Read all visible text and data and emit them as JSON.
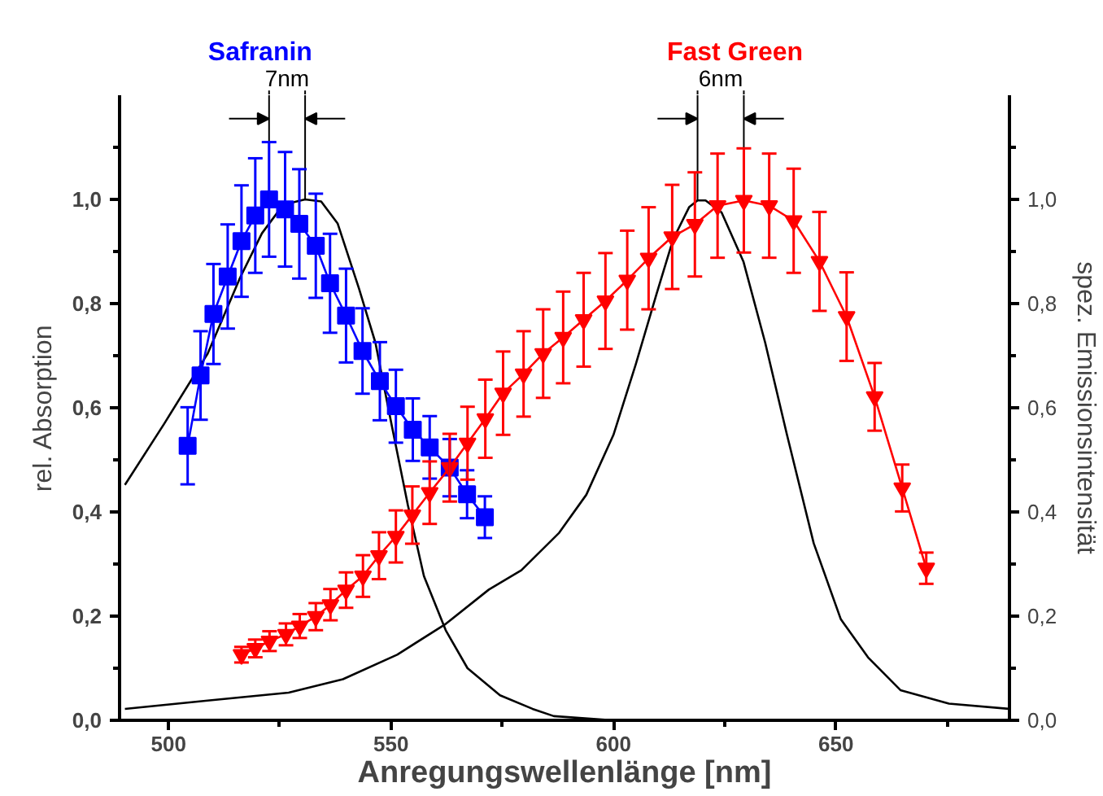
{
  "chart_data": {
    "type": "line",
    "xlabel": "Anregungswellenlänge [nm]",
    "ylabel": "rel. Absorption",
    "y2label": "spez. Emissionsintensität",
    "xlim": [
      489,
      689
    ],
    "xticks": [
      500,
      {
        "value": 525,
        "label": null
      },
      550,
      {
        "value": 575,
        "label": null
      },
      600,
      {
        "value": 625,
        "label": null
      },
      650,
      {
        "value": 675,
        "label": null
      }
    ],
    "ylim": [
      0,
      1.2
    ],
    "yticks": [
      {
        "value": 0,
        "label": "0,0"
      },
      {
        "value": 0.1,
        "label": null
      },
      {
        "value": 0.2,
        "label": "0,2"
      },
      {
        "value": 0.3,
        "label": null
      },
      {
        "value": 0.4,
        "label": "0,4"
      },
      {
        "value": 0.5,
        "label": null
      },
      {
        "value": 0.6,
        "label": "0,6"
      },
      {
        "value": 0.7,
        "label": null
      },
      {
        "value": 0.8,
        "label": "0,8"
      },
      {
        "value": 0.9,
        "label": null
      },
      {
        "value": 1.0,
        "label": "1,0"
      },
      {
        "value": 1.1,
        "label": null
      }
    ],
    "y2lim": [
      0,
      1.2
    ],
    "y2ticks": [
      {
        "value": 0,
        "label": "0,0"
      },
      {
        "value": 0.1,
        "label": null
      },
      {
        "value": 0.2,
        "label": "0,2"
      },
      {
        "value": 0.3,
        "label": null
      },
      {
        "value": 0.4,
        "label": "0,4"
      },
      {
        "value": 0.5,
        "label": null
      },
      {
        "value": 0.6,
        "label": "0,6"
      },
      {
        "value": 0.7,
        "label": null
      },
      {
        "value": 0.8,
        "label": "0,8"
      },
      {
        "value": 0.9,
        "label": null
      },
      {
        "value": 1.0,
        "label": "1,0"
      },
      {
        "value": 1.1,
        "label": null
      }
    ],
    "grid": false,
    "annotations": [
      {
        "text": "7nm",
        "x": 522.6,
        "y": 1.0
      },
      {
        "text": "6nm",
        "x": 629.3,
        "y": 0.998
      }
    ],
    "series": [
      {
        "color": "#000000",
        "marker": "none",
        "x": [
          490.2,
          499,
          508.8,
          516.1,
          521,
          525.8,
          530.7,
          534.3,
          538,
          542.8,
          546.5,
          550.1,
          553.8,
          557.4,
          562.3,
          567.2,
          574.5,
          581.8,
          586.6,
          600
        ],
        "values": [
          0.452,
          0.569,
          0.704,
          0.85,
          0.935,
          0.99,
          1.0,
          0.996,
          0.954,
          0.829,
          0.725,
          0.569,
          0.413,
          0.277,
          0.173,
          0.1,
          0.048,
          0.022,
          0.008,
          0.0
        ]
      },
      {
        "color": "#000000",
        "marker": "none",
        "x": [
          490.2,
          508.8,
          527,
          539.2,
          551.4,
          562.3,
          572,
          579.3,
          587.8,
          593.9,
          600,
          605,
          609.7,
          613.4,
          617,
          618.9,
          620.7,
          624.3,
          629.2,
          634.1,
          639,
          645,
          651.1,
          657.2,
          664.5,
          675.4,
          688.8
        ],
        "values": [
          0.022,
          0.038,
          0.053,
          0.079,
          0.126,
          0.185,
          0.251,
          0.288,
          0.36,
          0.433,
          0.548,
          0.683,
          0.819,
          0.923,
          0.985,
          0.998,
          0.998,
          0.975,
          0.881,
          0.725,
          0.548,
          0.34,
          0.194,
          0.121,
          0.058,
          0.032,
          0.022
        ]
      },
      {
        "name": "Safranin",
        "color": "#0000ff",
        "marker": "square",
        "x": [
          504.3,
          507.2,
          510.1,
          513.3,
          516.4,
          519.5,
          522.6,
          526.2,
          529.4,
          533.1,
          536.3,
          539.9,
          543.6,
          547.5,
          551.1,
          554.9,
          558.7,
          563.2,
          567.1,
          571.1
        ],
        "values": [
          0.527,
          0.662,
          0.78,
          0.852,
          0.92,
          0.969,
          1.0,
          0.981,
          0.953,
          0.911,
          0.839,
          0.777,
          0.709,
          0.651,
          0.603,
          0.558,
          0.524,
          0.485,
          0.434,
          0.39
        ],
        "errors": [
          0.074,
          0.085,
          0.096,
          0.1,
          0.107,
          0.11,
          0.11,
          0.11,
          0.105,
          0.1,
          0.095,
          0.09,
          0.082,
          0.075,
          0.07,
          0.06,
          0.06,
          0.055,
          0.046,
          0.04
        ]
      },
      {
        "name": "Fast Green",
        "color": "#ff0000",
        "marker": "triangle",
        "x": [
          516.4,
          519.5,
          522.7,
          526.4,
          529.5,
          533.1,
          536.4,
          539.9,
          543.7,
          547.3,
          551.1,
          554.8,
          558.7,
          563.2,
          567.2,
          571.2,
          575.2,
          579.8,
          584.2,
          588.7,
          593.3,
          598.2,
          603.1,
          607.9,
          613.2,
          618.3,
          623.4,
          629.3,
          635,
          640.5,
          646.3,
          652.4,
          658.7,
          664.9,
          670.3
        ],
        "values": [
          0.126,
          0.138,
          0.152,
          0.165,
          0.181,
          0.199,
          0.222,
          0.25,
          0.277,
          0.316,
          0.353,
          0.394,
          0.437,
          0.485,
          0.532,
          0.579,
          0.628,
          0.665,
          0.704,
          0.735,
          0.769,
          0.805,
          0.845,
          0.887,
          0.928,
          0.952,
          0.988,
          0.998,
          0.988,
          0.959,
          0.881,
          0.775,
          0.621,
          0.446,
          0.292
        ],
        "errors": [
          0.015,
          0.017,
          0.019,
          0.021,
          0.023,
          0.026,
          0.03,
          0.034,
          0.04,
          0.045,
          0.05,
          0.055,
          0.06,
          0.065,
          0.07,
          0.075,
          0.08,
          0.082,
          0.085,
          0.088,
          0.09,
          0.092,
          0.095,
          0.098,
          0.1,
          0.1,
          0.1,
          0.1,
          0.1,
          0.1,
          0.095,
          0.085,
          0.065,
          0.045,
          0.03
        ]
      }
    ]
  }
}
